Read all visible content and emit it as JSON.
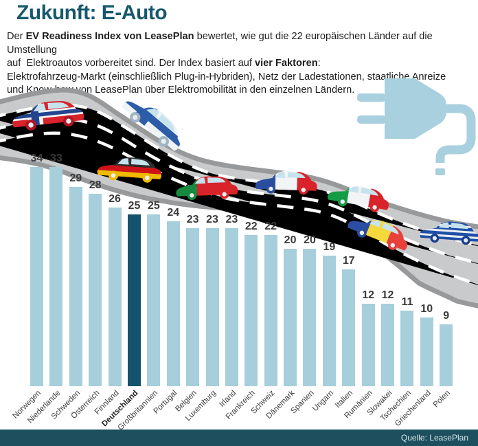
{
  "title": "Zukunft: E-Auto",
  "intro": {
    "lines": [
      [
        {
          "t": "Der ",
          "b": 0
        },
        {
          "t": "EV Readiness Index von LeasePlan",
          "b": 1
        },
        {
          "t": " bewertet, wie gut die 22 europäischen Länder auf die Umstellung",
          "b": 0
        }
      ],
      [
        {
          "t": "auf  Elektroautos vorbereitet sind. Der Index basiert auf ",
          "b": 0
        },
        {
          "t": "vier Faktoren",
          "b": 1
        },
        {
          "t": ":",
          "b": 0
        }
      ],
      [
        {
          "t": "Elektrofahrzeug-Markt (einschließlich Plug-in-Hybriden), Netz der Ladestationen, staatliche Anreize",
          "b": 0
        }
      ],
      [
        {
          "t": "und Know-how von LeasePlan über Elektromobilität in den einzelnen Ländern.",
          "b": 0
        }
      ]
    ]
  },
  "chart_data": {
    "type": "bar",
    "title": "EV Readiness Index von LeasePlan",
    "categories": [
      "Norwegen",
      "Niederlande",
      "Schweden",
      "Österreich",
      "Finnland",
      "Deutschland",
      "Großbritannien",
      "Portugal",
      "Belgien",
      "Luxemburg",
      "Irland",
      "Frankreich",
      "Schweiz",
      "Dänemark",
      "Spanien",
      "Ungarn",
      "Italien",
      "Rumänien",
      "Slowakei",
      "Tschechien",
      "Griechenland",
      "Polen"
    ],
    "values": [
      34,
      33,
      29,
      28,
      26,
      25,
      25,
      24,
      23,
      23,
      23,
      22,
      22,
      20,
      20,
      19,
      17,
      12,
      12,
      11,
      10,
      9
    ],
    "highlighted_category": "Deutschland",
    "highlight_index": 5,
    "ylim": [
      0,
      34
    ],
    "grid": false,
    "legend": false,
    "value_labels": true,
    "bar_color": "#a6cedb",
    "highlight_color": "#14536b",
    "value_label_color": "#3a3a3a"
  },
  "footer": {
    "source_label": "Quelle: LeasePlan"
  },
  "decor": {
    "title_color": "#17586e",
    "footer_color": "#1d4f5f",
    "plug_icon_color": "#a9d0de",
    "road_color": "#c9cacb",
    "road_edge_color": "#98999b",
    "lane_marking_color": "#ffffff",
    "cars": [
      {
        "name": "car-norway",
        "country": "Norwegen",
        "pattern": "cross",
        "colors": [
          "#d8232a",
          "#f4f6f7",
          "#23458f"
        ],
        "wheels": [
          "#b01624",
          "#b01624"
        ]
      },
      {
        "name": "car-finland",
        "country": "Finnland",
        "pattern": "cross",
        "colors": [
          "#eef3f5",
          "#2d5da8",
          "#2d5da8"
        ],
        "wheels": [
          "#9fb4c4",
          "#9fb4c4"
        ]
      },
      {
        "name": "car-germany",
        "country": "Deutschland",
        "pattern": "h3",
        "colors": [
          "#2e2e2e",
          "#d01317",
          "#f0ba00"
        ],
        "wheels": [
          "#f0ba00",
          "#f0ba00"
        ]
      },
      {
        "name": "car-portugal",
        "country": "Portugal",
        "pattern": "v2",
        "colors": [
          "#168a3e",
          "#d8232a"
        ],
        "wheels": [
          "#168a3e",
          "#d8232a"
        ]
      },
      {
        "name": "car-france",
        "country": "Frankreich",
        "pattern": "v3",
        "colors": [
          "#2a4da0",
          "#f2f4f5",
          "#d8232a"
        ],
        "wheels": [
          "#2a4da0",
          "#d8232a"
        ]
      },
      {
        "name": "car-italy",
        "country": "Italien",
        "pattern": "v3",
        "colors": [
          "#169b46",
          "#f2f4f5",
          "#d8232a"
        ],
        "wheels": [
          "#169b46",
          "#d8232a"
        ]
      },
      {
        "name": "car-romania",
        "country": "Rumänien",
        "pattern": "v3",
        "colors": [
          "#2b4ea2",
          "#f5d83c",
          "#e8403a"
        ],
        "wheels": [
          "#2b4ea2",
          "#e8403a"
        ]
      },
      {
        "name": "car-greece",
        "country": "Griechenland",
        "pattern": "stripes",
        "colors": [
          "#1f4fa5",
          "#e9eef5"
        ],
        "wheels": [
          "#1a3f92",
          "#1a3f92"
        ]
      }
    ]
  }
}
